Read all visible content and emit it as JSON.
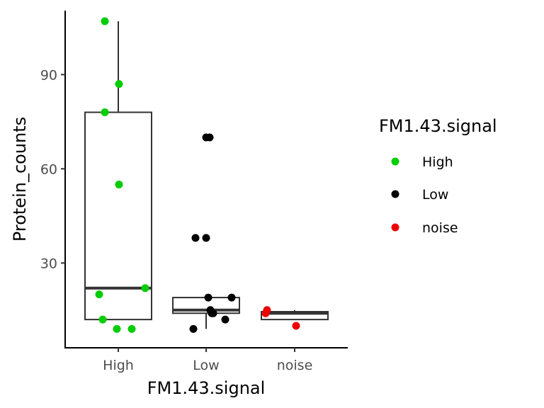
{
  "chart_data": {
    "type": "boxplot",
    "xlabel": "FM1.43.signal",
    "ylabel": "Protein_counts",
    "categories": [
      "High",
      "Low",
      "noise"
    ],
    "ylim": [
      3,
      110
    ],
    "yticks": [
      30,
      60,
      90
    ],
    "grid": false,
    "legend": {
      "title": "FM1.43.signal",
      "placement": "right",
      "entries": [
        {
          "label": "High",
          "color": "#00cd00"
        },
        {
          "label": "Low",
          "color": "#000000"
        },
        {
          "label": "noise",
          "color": "#ee0000"
        }
      ]
    },
    "boxes": [
      {
        "category": "High",
        "whisker_low": 12,
        "q1": 12,
        "median": 22,
        "q3": 78,
        "whisker_high": 107
      },
      {
        "category": "Low",
        "whisker_low": 9,
        "q1": 14,
        "median": 15,
        "q3": 19,
        "whisker_high": 19
      },
      {
        "category": "noise",
        "whisker_low": 12,
        "q1": 12,
        "median": 14,
        "q3": 14.5,
        "whisker_high": 15
      }
    ],
    "points": [
      {
        "category": "High",
        "y": 107,
        "jitter": -0.19
      },
      {
        "category": "High",
        "y": 87,
        "jitter": 0.01
      },
      {
        "category": "High",
        "y": 78,
        "jitter": -0.19
      },
      {
        "category": "High",
        "y": 55,
        "jitter": 0.01
      },
      {
        "category": "High",
        "y": 22,
        "jitter": 0.38
      },
      {
        "category": "High",
        "y": 20,
        "jitter": -0.27
      },
      {
        "category": "High",
        "y": 12,
        "jitter": -0.22
      },
      {
        "category": "High",
        "y": 9,
        "jitter": -0.02
      },
      {
        "category": "High",
        "y": 9,
        "jitter": 0.19
      },
      {
        "category": "Low",
        "y": 70,
        "jitter": 0.0
      },
      {
        "category": "Low",
        "y": 70,
        "jitter": 0.05
      },
      {
        "category": "Low",
        "y": 38,
        "jitter": -0.15
      },
      {
        "category": "Low",
        "y": 38,
        "jitter": 0.0
      },
      {
        "category": "Low",
        "y": 19,
        "jitter": 0.03
      },
      {
        "category": "Low",
        "y": 19,
        "jitter": 0.36
      },
      {
        "category": "Low",
        "y": 15,
        "jitter": 0.06
      },
      {
        "category": "Low",
        "y": 14,
        "jitter": 0.08
      },
      {
        "category": "Low",
        "y": 14,
        "jitter": 0.1
      },
      {
        "category": "Low",
        "y": 12,
        "jitter": 0.27
      },
      {
        "category": "Low",
        "y": 9,
        "jitter": -0.18
      },
      {
        "category": "noise",
        "y": 15,
        "jitter": -0.39
      },
      {
        "category": "noise",
        "y": 14,
        "jitter": -0.41
      },
      {
        "category": "noise",
        "y": 10,
        "jitter": 0.02
      }
    ]
  }
}
